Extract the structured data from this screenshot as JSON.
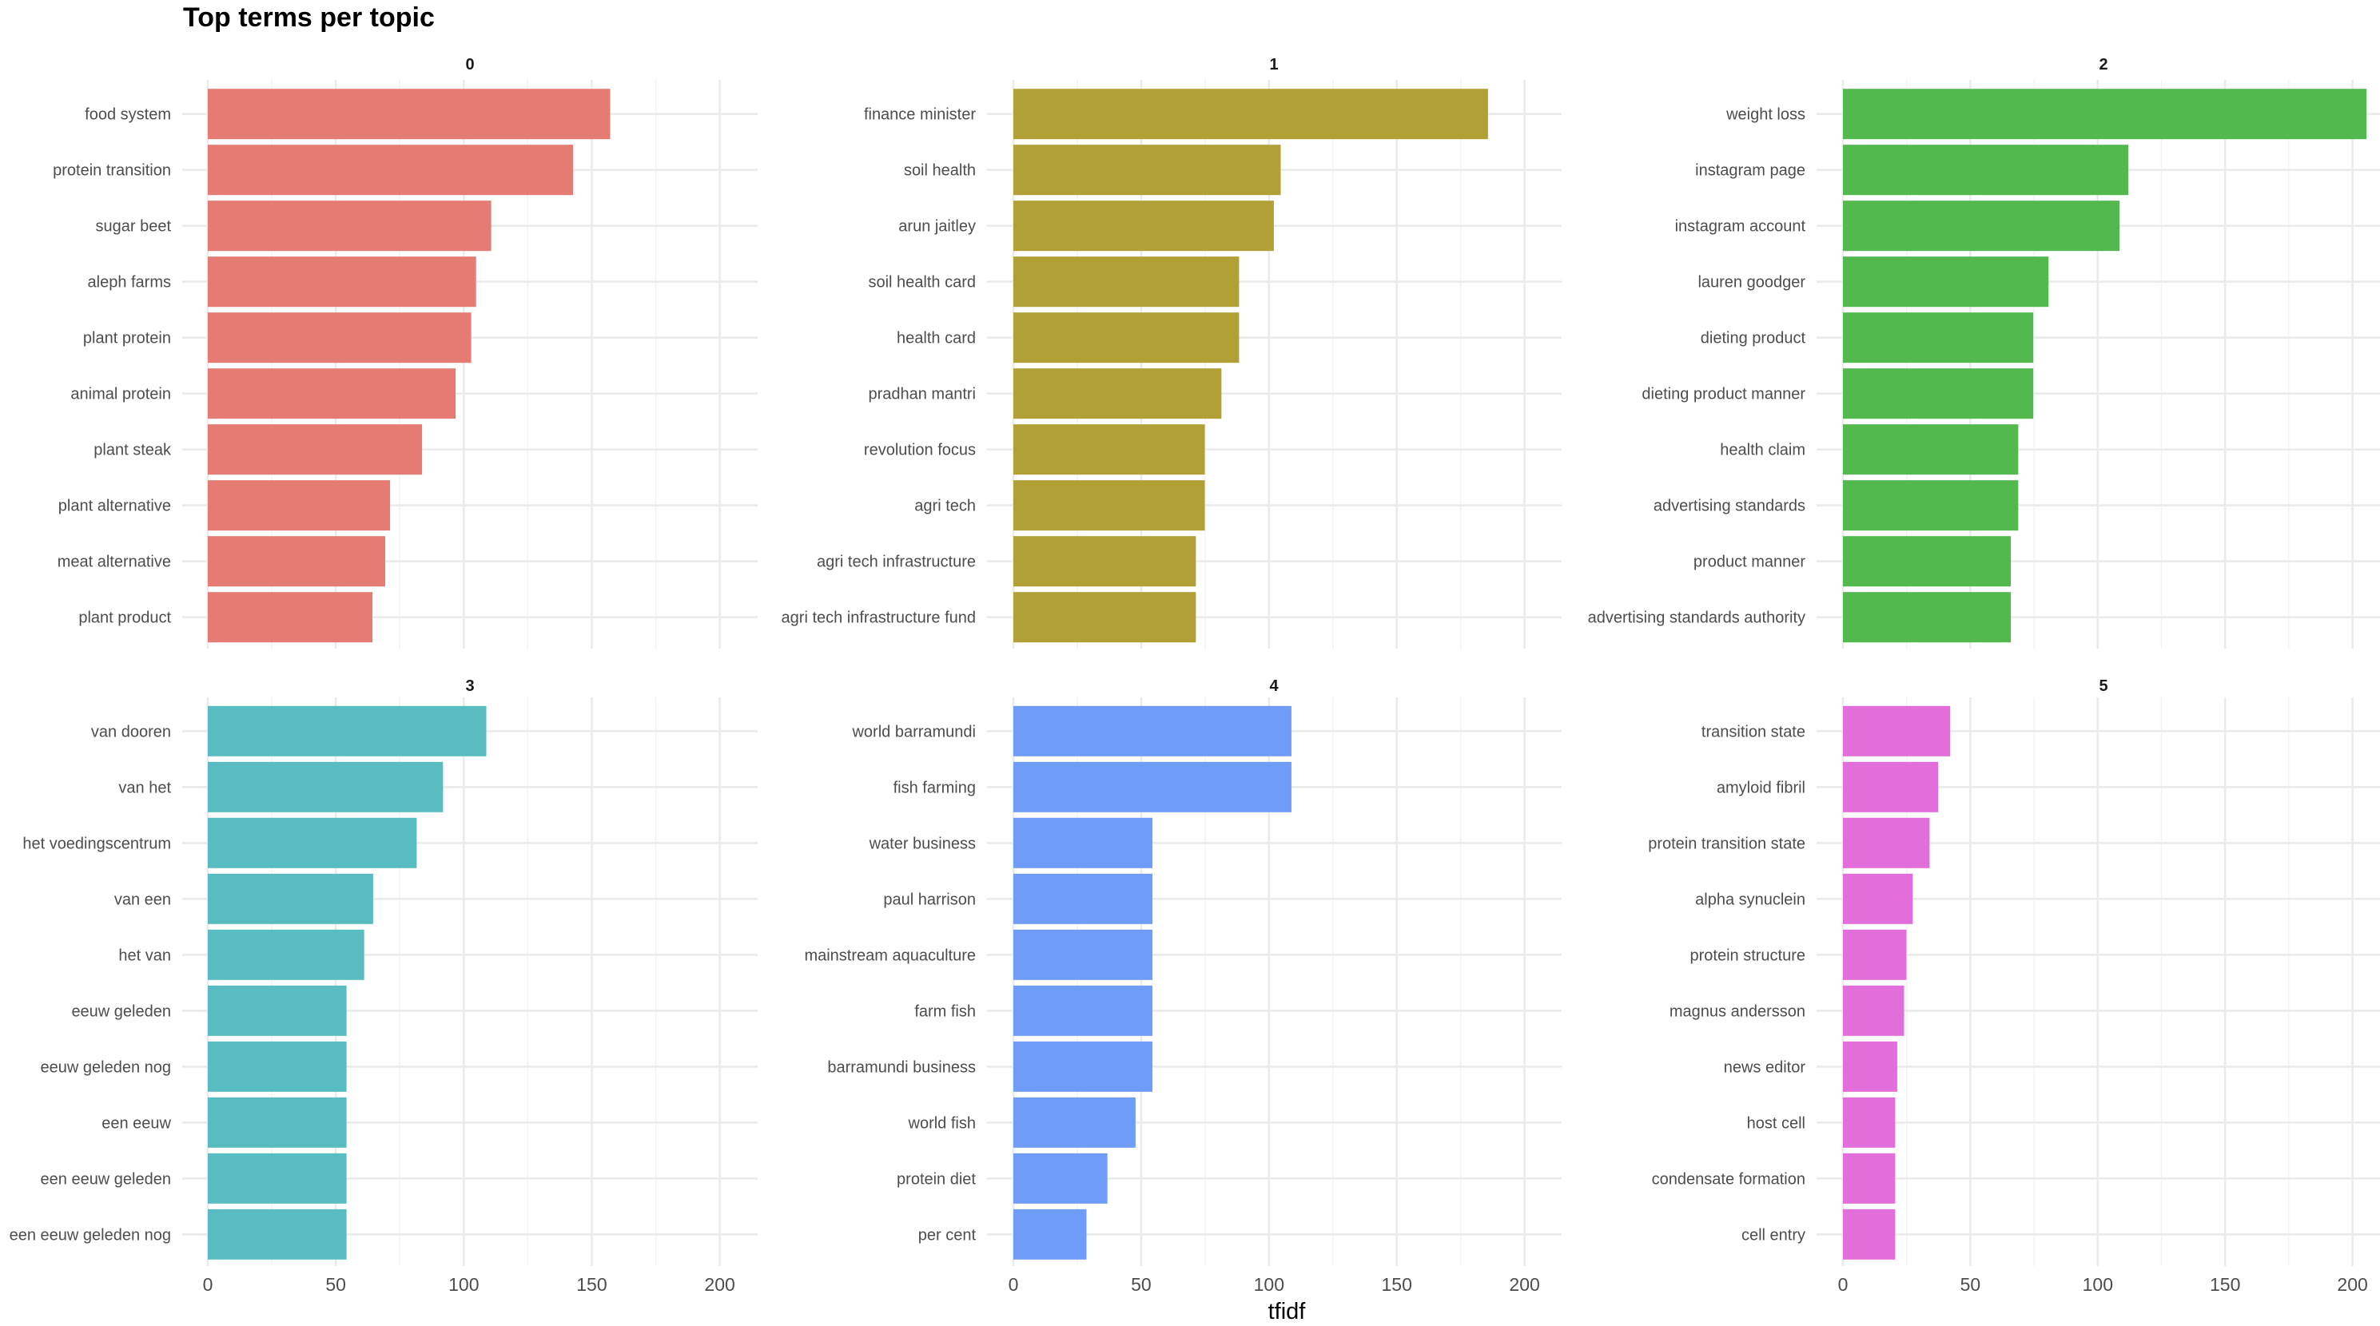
{
  "chart_data": {
    "type": "bar",
    "orientation": "horizontal",
    "title": "Top terms per topic",
    "xlabel": "tfidf",
    "ylabel": "",
    "xlim": [
      0,
      215
    ],
    "xticks": [
      0,
      50,
      100,
      150,
      200
    ],
    "grid": true,
    "legend": "none",
    "facets": [
      {
        "name": "0",
        "color": "#E57B73",
        "terms": [
          "food system",
          "protein transition",
          "sugar beet",
          "aleph farms",
          "plant protein",
          "animal protein",
          "plant steak",
          "plant alternative",
          "meat alternative",
          "plant product"
        ],
        "values": [
          157.2,
          142.7,
          110.7,
          104.8,
          102.9,
          96.8,
          83.7,
          71.2,
          69.3,
          64.3
        ]
      },
      {
        "name": "1",
        "color": "#B1A035",
        "terms": [
          "finance minister",
          "soil health",
          "arun jaitley",
          "soil health card",
          "health card",
          "pradhan mantri",
          "revolution focus",
          "agri tech",
          "agri tech infrastructure",
          "agri tech infrastructure fund"
        ],
        "values": [
          185.7,
          104.6,
          101.9,
          88.3,
          88.3,
          81.4,
          74.9,
          74.9,
          71.4,
          71.4
        ]
      },
      {
        "name": "2",
        "color": "#53B84E",
        "terms": [
          "weight loss",
          "instagram page",
          "instagram account",
          "lauren goodger",
          "dieting product",
          "dieting product manner",
          "health claim",
          "advertising standards",
          "product manner",
          "advertising standards authority"
        ],
        "values": [
          205.5,
          112.0,
          108.6,
          80.7,
          74.7,
          74.7,
          68.8,
          68.8,
          65.9,
          65.9
        ]
      },
      {
        "name": "3",
        "color": "#58BCC1",
        "terms": [
          "van dooren",
          "van het",
          "het voedingscentrum",
          "van een",
          "het van",
          "eeuw geleden",
          "eeuw geleden nog",
          "een eeuw",
          "een eeuw geleden",
          "een eeuw geleden nog"
        ],
        "values": [
          108.8,
          91.9,
          81.6,
          64.6,
          61.1,
          54.2,
          54.2,
          54.2,
          54.2,
          54.2
        ]
      },
      {
        "name": "4",
        "color": "#6F9CF6",
        "terms": [
          "world barramundi",
          "fish farming",
          "water business",
          "paul harrison",
          "mainstream aquaculture",
          "farm fish",
          "barramundi business",
          "world fish",
          "protein diet",
          "per cent"
        ],
        "values": [
          108.8,
          108.8,
          54.4,
          54.4,
          54.4,
          54.4,
          54.4,
          47.8,
          36.8,
          28.6
        ]
      },
      {
        "name": "5",
        "color": "#E26EDB",
        "terms": [
          "transition state",
          "amyloid fibril",
          "protein transition state",
          "alpha synuclein",
          "protein structure",
          "magnus andersson",
          "news editor",
          "host cell",
          "condensate formation",
          "cell entry"
        ],
        "values": [
          42.1,
          37.4,
          34.0,
          27.4,
          24.9,
          24.0,
          21.3,
          20.5,
          20.5,
          20.5
        ]
      }
    ]
  }
}
